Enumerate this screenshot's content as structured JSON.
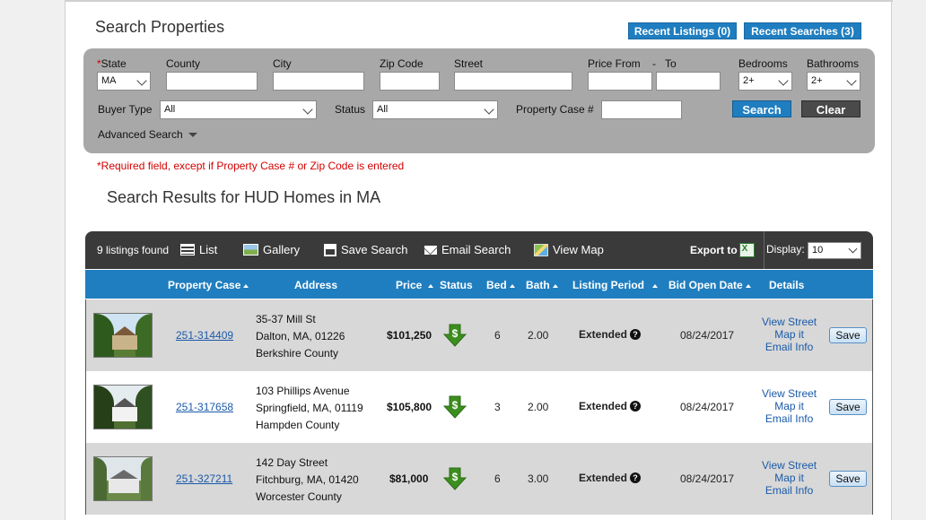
{
  "page_title": "Search Properties",
  "recent": {
    "listings": "Recent Listings (0)",
    "searches": "Recent Searches (3)"
  },
  "search": {
    "state_required_mark": "*",
    "state_label": "State",
    "state_value": "MA",
    "county_label": "County",
    "city_label": "City",
    "zip_label": "Zip Code",
    "street_label": "Street",
    "price_from_label": "Price From",
    "price_dash": "-",
    "price_to_label": "To",
    "bedrooms_label": "Bedrooms",
    "bedrooms_value": "2+",
    "bathrooms_label": "Bathrooms",
    "bathrooms_value": "2+",
    "buyer_type_label": "Buyer Type",
    "buyer_type_value": "All",
    "status_label": "Status",
    "status_value": "All",
    "property_case_label": "Property Case #",
    "search_button": "Search",
    "clear_button": "Clear",
    "advanced_search": "Advanced Search"
  },
  "required_note": "*Required field, except if Property Case # or Zip Code is entered",
  "results_title": "Search Results for HUD Homes in MA",
  "toolbar": {
    "count": "9 listings found",
    "list": "List",
    "gallery": "Gallery",
    "save_search": "Save Search",
    "email_search": "Email Search",
    "view_map": "View Map",
    "export": "Export to",
    "display_label": "Display:",
    "display_value": "10"
  },
  "columns": {
    "property_case": "Property Case",
    "address": "Address",
    "price": "Price",
    "status": "Status",
    "bed": "Bed",
    "bath": "Bath",
    "listing_period": "Listing Period",
    "bid_open_date": "Bid Open Date",
    "details": "Details"
  },
  "listings": [
    {
      "case": "251-314409",
      "street": "35-37 Mill St",
      "city": "Dalton, MA, 01226",
      "county": "Berkshire County",
      "price": "$101,250",
      "bed": "6",
      "bath": "2.00",
      "period": "Extended",
      "bid_date": "08/24/2017",
      "view_street": "View Street",
      "map_it": "Map it",
      "email_info": "Email Info",
      "save": "Save"
    },
    {
      "case": "251-317658",
      "street": "103 Phillips Avenue",
      "city": "Springfield, MA, 01119",
      "county": "Hampden County",
      "price": "$105,800",
      "bed": "3",
      "bath": "2.00",
      "period": "Extended",
      "bid_date": "08/24/2017",
      "view_street": "View Street",
      "map_it": "Map it",
      "email_info": "Email Info",
      "save": "Save"
    },
    {
      "case": "251-327211",
      "street": "142 Day Street",
      "city": "Fitchburg, MA, 01420",
      "county": "Worcester County",
      "price": "$81,000",
      "bed": "6",
      "bath": "3.00",
      "period": "Extended",
      "bid_date": "08/24/2017",
      "view_street": "View Street",
      "map_it": "Map it",
      "email_info": "Email Info",
      "save": "Save"
    }
  ],
  "colors": {
    "accent": "#1f7ec0",
    "toolbar": "#3a3a3a",
    "panel": "#a8a8a8",
    "required": "#d40000",
    "status_green": "#3c8f1e"
  }
}
